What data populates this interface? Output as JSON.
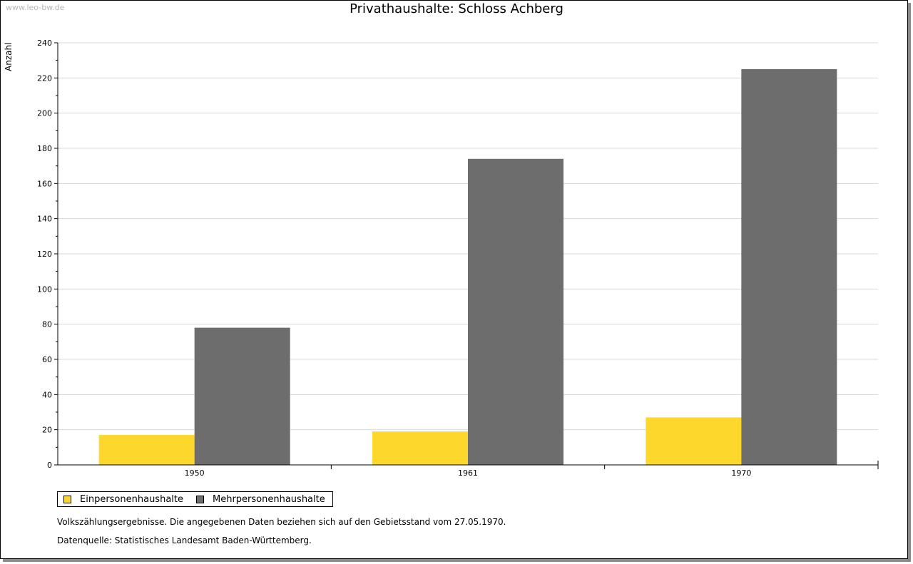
{
  "watermark": "www.leo-bw.de",
  "colors": {
    "einpersonen": "#fdd72b",
    "mehrpersonen": "#6d6d6d",
    "grid": "#d8d8d8",
    "axis": "#000000"
  },
  "notes": {
    "line1": "Volkszählungsergebnisse. Die angegebenen Daten beziehen sich auf den Gebietsstand vom 27.05.1970.",
    "line2": "Datenquelle: Statistisches Landesamt Baden-Württemberg."
  },
  "chart_data": {
    "type": "bar",
    "title": "Privathaushalte: Schloss Achberg",
    "xlabel": "",
    "ylabel": "Anzahl",
    "ylim": [
      0,
      240
    ],
    "ytick_step": 20,
    "categories": [
      "1950",
      "1961",
      "1970"
    ],
    "series": [
      {
        "name": "Einpersonenhaushalte",
        "values": [
          17,
          19,
          27
        ]
      },
      {
        "name": "Mehrpersonenhaushalte",
        "values": [
          78,
          174,
          225
        ]
      }
    ],
    "grid": true,
    "legend": "bottom-left"
  }
}
